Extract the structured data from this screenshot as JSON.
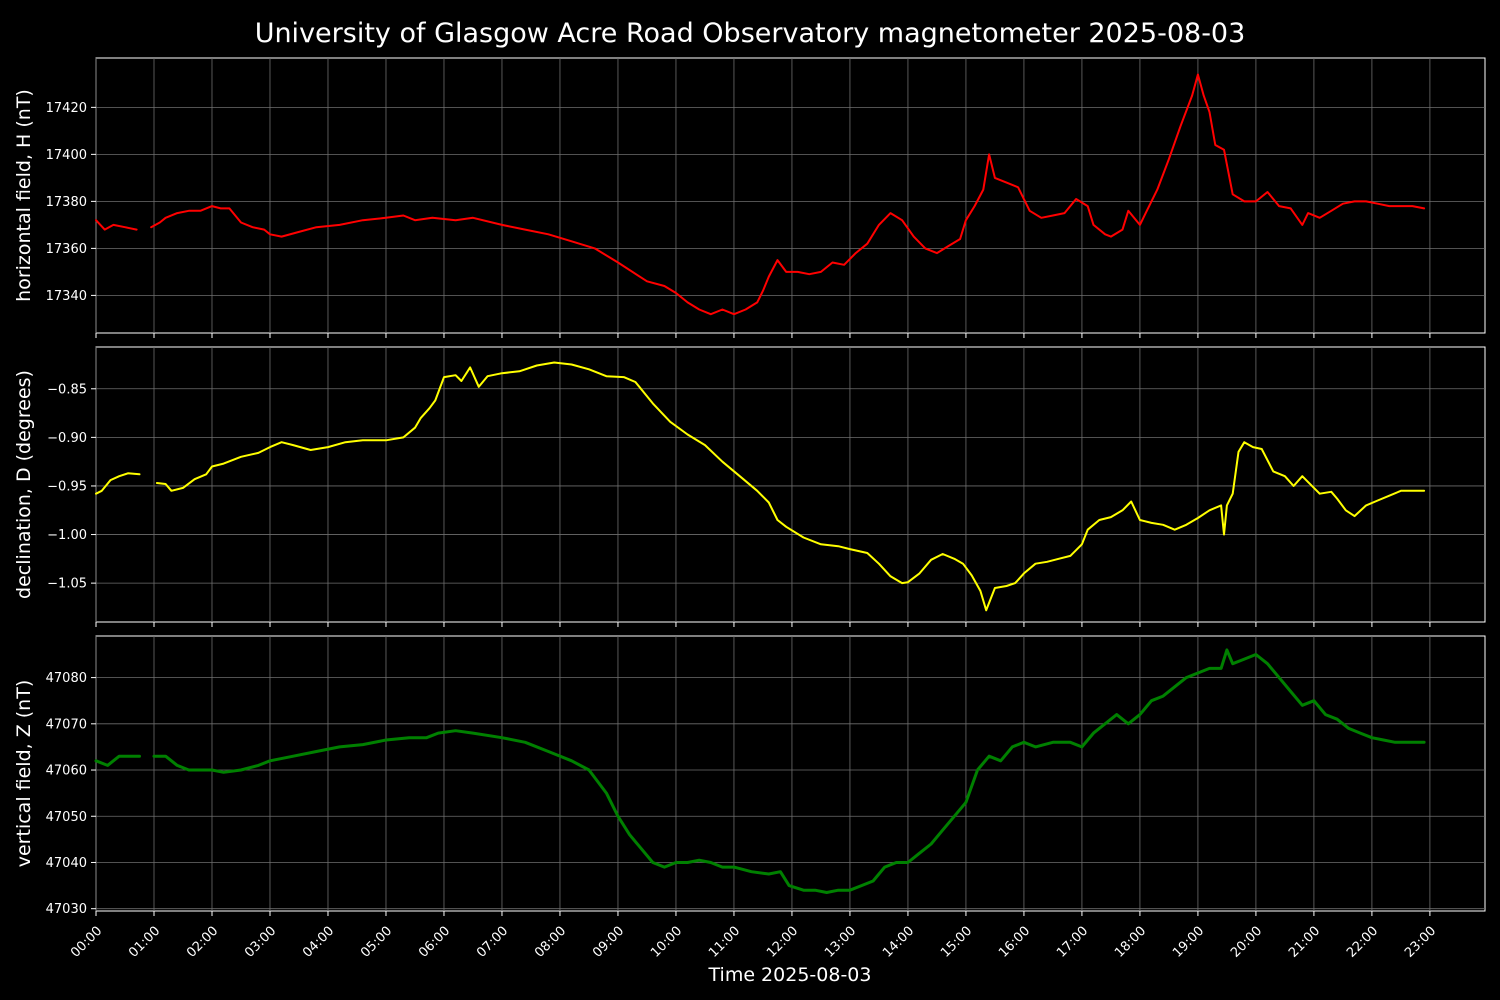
{
  "chart_data": {
    "type": "line",
    "title": "University of Glasgow Acre Road Observatory magnetometer 2025-08-03",
    "xlabel": "Time 2025-08-03",
    "x_unit": "hours",
    "xlim": [
      0,
      23.95
    ],
    "x_ticks": [
      0,
      1,
      2,
      3,
      4,
      5,
      6,
      7,
      8,
      9,
      10,
      11,
      12,
      13,
      14,
      15,
      16,
      17,
      18,
      19,
      20,
      21,
      22,
      23
    ],
    "x_tick_labels": [
      "00:00",
      "01:00",
      "02:00",
      "03:00",
      "04:00",
      "05:00",
      "06:00",
      "07:00",
      "08:00",
      "09:00",
      "10:00",
      "11:00",
      "12:00",
      "13:00",
      "14:00",
      "15:00",
      "16:00",
      "17:00",
      "18:00",
      "19:00",
      "20:00",
      "21:00",
      "22:00",
      "23:00"
    ],
    "grid": true,
    "panels": [
      {
        "name": "H",
        "ylabel": "horizontal field, H (nT)",
        "color": "#ff0000",
        "ylim": [
          17324,
          17441
        ],
        "y_ticks": [
          17340,
          17360,
          17380,
          17400,
          17420
        ],
        "x": [
          0,
          0.15,
          0.3,
          0.5,
          0.7,
          0.8,
          0.95,
          1.1,
          1.2,
          1.4,
          1.6,
          1.8,
          2.0,
          2.15,
          2.3,
          2.5,
          2.7,
          2.9,
          3.0,
          3.2,
          3.5,
          3.8,
          4.2,
          4.6,
          5.0,
          5.3,
          5.5,
          5.8,
          6.2,
          6.5,
          7.0,
          7.4,
          7.8,
          8.2,
          8.6,
          9.0,
          9.5,
          9.8,
          10.0,
          10.2,
          10.4,
          10.6,
          10.8,
          11.0,
          11.2,
          11.4,
          11.5,
          11.6,
          11.75,
          11.9,
          12.1,
          12.3,
          12.5,
          12.7,
          12.9,
          13.1,
          13.3,
          13.5,
          13.7,
          13.9,
          14.1,
          14.3,
          14.5,
          14.7,
          14.9,
          15.0,
          15.15,
          15.3,
          15.4,
          15.5,
          15.7,
          15.9,
          16.1,
          16.3,
          16.5,
          16.7,
          16.9,
          17.1,
          17.2,
          17.4,
          17.5,
          17.7,
          17.8,
          18.0,
          18.1,
          18.3,
          18.5,
          18.7,
          18.9,
          19.0,
          19.1,
          19.2,
          19.3,
          19.45,
          19.6,
          19.8,
          20.0,
          20.2,
          20.4,
          20.6,
          20.8,
          20.9,
          21.1,
          21.3,
          21.5,
          21.7,
          21.9,
          22.1,
          22.3,
          22.5,
          22.7,
          22.9
        ],
        "values": [
          17372,
          17368,
          17370,
          17369,
          17368,
          null,
          17369,
          17371,
          17373,
          17375,
          17376,
          17376,
          17378,
          17377,
          17377,
          17371,
          17369,
          17368,
          17366,
          17365,
          17367,
          17369,
          17370,
          17372,
          17373,
          17374,
          17372,
          17373,
          17372,
          17373,
          17370,
          17368,
          17366,
          17363,
          17360,
          17354,
          17346,
          17344,
          17341,
          17337,
          17334,
          17332,
          17334,
          17332,
          17334,
          17337,
          17342,
          17348,
          17355,
          17350,
          17350,
          17349,
          17350,
          17354,
          17353,
          17358,
          17362,
          17370,
          17375,
          17372,
          17365,
          17360,
          17358,
          17361,
          17364,
          17372,
          17378,
          17385,
          17400,
          17390,
          17388,
          17386,
          17376,
          17373,
          17374,
          17375,
          17381,
          17378,
          17370,
          17366,
          17365,
          17368,
          17376,
          17370,
          17375,
          17385,
          17398,
          17412,
          17425,
          17434,
          17425,
          17418,
          17404,
          17402,
          17383,
          17380,
          17380,
          17384,
          17378,
          17377,
          17370,
          17375,
          17373,
          17376,
          17379,
          17380,
          17380,
          17379,
          17378,
          17378,
          17378,
          17377
        ],
        "line_width": 2
      },
      {
        "name": "D",
        "ylabel": "declination, D (degrees)",
        "color": "#ffff00",
        "ylim": [
          -1.09,
          -0.807
        ],
        "y_ticks": [
          -0.85,
          -0.9,
          -0.95,
          -1.0,
          -1.05
        ],
        "y_tick_labels": [
          "−0.85",
          "−0.90",
          "−0.95",
          "−1.00",
          "−1.05"
        ],
        "x": [
          0,
          0.1,
          0.25,
          0.4,
          0.55,
          0.75,
          0.9,
          1.05,
          1.2,
          1.3,
          1.5,
          1.7,
          1.9,
          2.0,
          2.2,
          2.5,
          2.8,
          3.0,
          3.2,
          3.4,
          3.7,
          4.0,
          4.3,
          4.6,
          5.0,
          5.3,
          5.5,
          5.6,
          5.75,
          5.85,
          6.0,
          6.2,
          6.3,
          6.45,
          6.6,
          6.75,
          7.0,
          7.3,
          7.6,
          7.9,
          8.2,
          8.5,
          8.8,
          9.1,
          9.3,
          9.6,
          9.9,
          10.2,
          10.5,
          10.8,
          11.1,
          11.4,
          11.6,
          11.75,
          11.9,
          12.2,
          12.5,
          12.8,
          13.0,
          13.3,
          13.5,
          13.7,
          13.9,
          14.0,
          14.2,
          14.4,
          14.6,
          14.8,
          14.95,
          15.1,
          15.25,
          15.35,
          15.5,
          15.7,
          15.85,
          16.0,
          16.2,
          16.4,
          16.6,
          16.8,
          17.0,
          17.1,
          17.3,
          17.5,
          17.7,
          17.85,
          18.0,
          18.2,
          18.4,
          18.6,
          18.8,
          19.0,
          19.2,
          19.4,
          19.45,
          19.5,
          19.6,
          19.7,
          19.8,
          19.95,
          20.1,
          20.3,
          20.5,
          20.65,
          20.8,
          20.9,
          21.1,
          21.3,
          21.4,
          21.55,
          21.7,
          21.9,
          22.1,
          22.3,
          22.5,
          22.7,
          22.9
        ],
        "values": [
          -0.958,
          -0.955,
          -0.944,
          -0.94,
          -0.937,
          -0.938,
          null,
          -0.947,
          -0.948,
          -0.955,
          -0.952,
          -0.943,
          -0.938,
          -0.93,
          -0.927,
          -0.92,
          -0.916,
          -0.91,
          -0.905,
          -0.908,
          -0.913,
          -0.91,
          -0.905,
          -0.903,
          -0.903,
          -0.9,
          -0.89,
          -0.88,
          -0.87,
          -0.862,
          -0.838,
          -0.836,
          -0.842,
          -0.828,
          -0.848,
          -0.837,
          -0.834,
          -0.832,
          -0.826,
          -0.823,
          -0.825,
          -0.83,
          -0.837,
          -0.838,
          -0.843,
          -0.865,
          -0.884,
          -0.897,
          -0.908,
          -0.925,
          -0.94,
          -0.955,
          -0.967,
          -0.985,
          -0.992,
          -1.003,
          -1.01,
          -1.012,
          -1.015,
          -1.019,
          -1.03,
          -1.043,
          -1.05,
          -1.049,
          -1.04,
          -1.026,
          -1.02,
          -1.025,
          -1.03,
          -1.042,
          -1.058,
          -1.078,
          -1.055,
          -1.053,
          -1.05,
          -1.04,
          -1.03,
          -1.028,
          -1.025,
          -1.022,
          -1.01,
          -0.995,
          -0.985,
          -0.982,
          -0.975,
          -0.966,
          -0.985,
          -0.988,
          -0.99,
          -0.995,
          -0.99,
          -0.983,
          -0.975,
          -0.97,
          -1.0,
          -0.97,
          -0.958,
          -0.915,
          -0.905,
          -0.91,
          -0.912,
          -0.935,
          -0.94,
          -0.95,
          -0.94,
          -0.946,
          -0.958,
          -0.956,
          -0.963,
          -0.975,
          -0.981,
          -0.97,
          -0.965,
          -0.96,
          -0.955,
          -0.955,
          -0.955
        ],
        "line_width": 2
      },
      {
        "name": "Z",
        "ylabel": "vertical field, Z (nT)",
        "color": "#008000",
        "ylim": [
          47029.5,
          47089
        ],
        "y_ticks": [
          47030,
          47040,
          47050,
          47060,
          47070,
          47080
        ],
        "x": [
          0,
          0.2,
          0.4,
          0.6,
          0.75,
          0.9,
          1.0,
          1.2,
          1.4,
          1.6,
          1.8,
          2.0,
          2.2,
          2.5,
          2.8,
          3.0,
          3.4,
          3.8,
          4.2,
          4.6,
          5.0,
          5.4,
          5.7,
          5.9,
          6.2,
          6.5,
          7.0,
          7.4,
          7.8,
          8.2,
          8.5,
          8.8,
          9.0,
          9.2,
          9.4,
          9.6,
          9.8,
          10.0,
          10.2,
          10.4,
          10.6,
          10.8,
          11.0,
          11.3,
          11.6,
          11.8,
          11.95,
          12.2,
          12.4,
          12.6,
          12.8,
          13.0,
          13.2,
          13.4,
          13.6,
          13.8,
          14.0,
          14.2,
          14.4,
          14.6,
          14.8,
          15.0,
          15.2,
          15.4,
          15.6,
          15.8,
          16.0,
          16.2,
          16.5,
          16.8,
          17.0,
          17.2,
          17.4,
          17.6,
          17.8,
          18.0,
          18.2,
          18.4,
          18.6,
          18.8,
          19.0,
          19.2,
          19.4,
          19.5,
          19.6,
          19.8,
          20.0,
          20.2,
          20.4,
          20.6,
          20.8,
          21.0,
          21.2,
          21.4,
          21.6,
          21.8,
          22.0,
          22.2,
          22.4,
          22.6,
          22.9
        ],
        "values": [
          47062,
          47061,
          47063,
          47063,
          47063,
          null,
          47063,
          47063,
          47061,
          47060,
          47060,
          47060,
          47059.5,
          47060,
          47061,
          47062,
          47063,
          47064,
          47065,
          47065.5,
          47066.5,
          47067,
          47067,
          47068,
          47068.5,
          47068,
          47067,
          47066,
          47064,
          47062,
          47060,
          47055,
          47050,
          47046,
          47043,
          47040,
          47039,
          47040,
          47040,
          47040.5,
          47040,
          47039,
          47039,
          47038,
          47037.5,
          47038,
          47035,
          47034,
          47034,
          47033.5,
          47034,
          47034,
          47035,
          47036,
          47039,
          47040,
          47040,
          47042,
          47044,
          47047,
          47050,
          47053,
          47060,
          47063,
          47062,
          47065,
          47066,
          47065,
          47066,
          47066,
          47065,
          47068,
          47070,
          47072,
          47070,
          47072,
          47075,
          47076,
          47078,
          47080,
          47081,
          47082,
          47082,
          47086,
          47083,
          47084,
          47085,
          47083,
          47080,
          47077,
          47074,
          47075,
          47072,
          47071,
          47069,
          47068,
          47067,
          47066.5,
          47066,
          47066,
          47066
        ],
        "line_width": 3
      }
    ]
  }
}
